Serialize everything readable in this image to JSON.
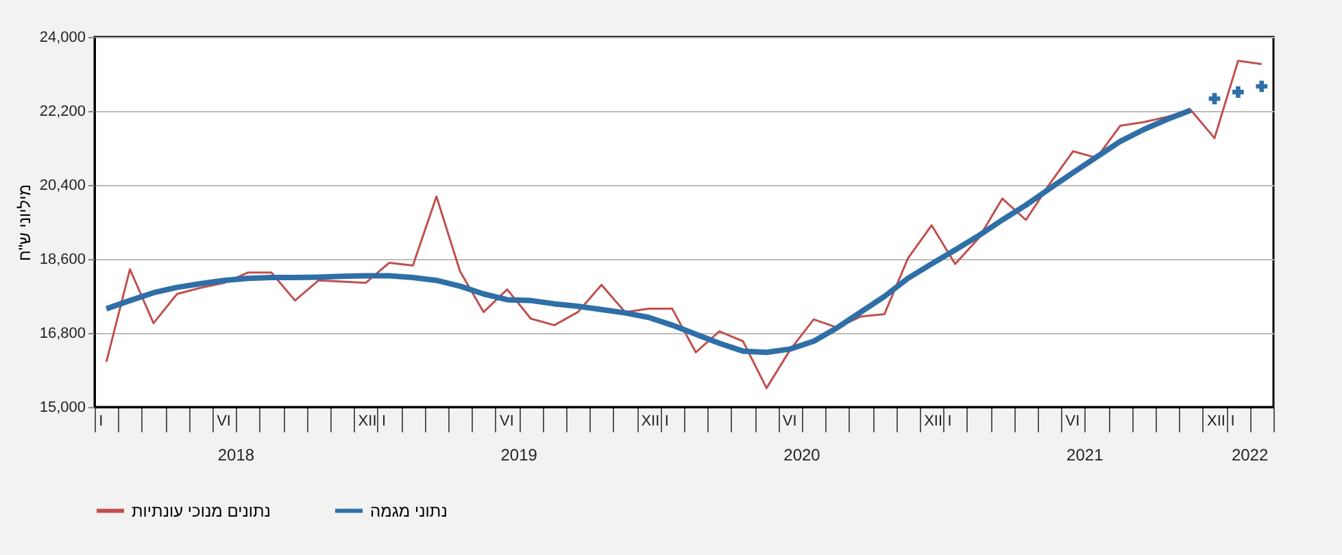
{
  "chart_data": {
    "type": "line",
    "ylabel": "מיליוני ש\"ח",
    "categories": [
      "I",
      null,
      null,
      null,
      null,
      "VI",
      null,
      null,
      null,
      null,
      null,
      "XII",
      "I",
      null,
      null,
      null,
      null,
      "VI",
      null,
      null,
      null,
      null,
      null,
      "XII",
      "I",
      null,
      null,
      null,
      null,
      "VI",
      null,
      null,
      null,
      null,
      null,
      "XII",
      "I",
      null,
      null,
      null,
      null,
      "VI",
      null,
      null,
      null,
      null,
      null,
      "XII",
      "I",
      null
    ],
    "annotations": [
      "2018",
      "2019",
      "2020",
      "2021",
      "2022"
    ],
    "series": [
      {
        "name": "נתונים מנוכי עונתיות",
        "color": "#c0504d",
        "values": [
          16100,
          18350,
          17040,
          17750,
          17900,
          18020,
          18270,
          18270,
          17590,
          18080,
          18050,
          18020,
          18510,
          18440,
          20120,
          18300,
          17310,
          17860,
          17150,
          16990,
          17310,
          17970,
          17310,
          17390,
          17390,
          16330,
          16840,
          16600,
          15460,
          16390,
          17130,
          16930,
          17200,
          17260,
          18620,
          19420,
          18480,
          19110,
          20070,
          19550,
          20420,
          21220,
          21060,
          21840,
          21930,
          22060,
          22220,
          21540,
          23420,
          23340
        ]
      },
      {
        "name": "נתוני מגמה",
        "color": "#2f6fa7",
        "values": [
          17390,
          17590,
          17780,
          17910,
          18000,
          18080,
          18130,
          18150,
          18150,
          18160,
          18180,
          18190,
          18190,
          18150,
          18080,
          17940,
          17750,
          17610,
          17590,
          17510,
          17450,
          17370,
          17290,
          17180,
          16990,
          16770,
          16550,
          16360,
          16330,
          16410,
          16600,
          16930,
          17310,
          17690,
          18130,
          18480,
          18820,
          19170,
          19550,
          19910,
          20310,
          20700,
          21080,
          21460,
          21750,
          22000,
          22220,
          null,
          null,
          null
        ]
      },
      {
        "type": "scatter",
        "color": "#2f6fa7",
        "marker": "cross",
        "values": [
          null,
          null,
          null,
          null,
          null,
          null,
          null,
          null,
          null,
          null,
          null,
          null,
          null,
          null,
          null,
          null,
          null,
          null,
          null,
          null,
          null,
          null,
          null,
          null,
          null,
          null,
          null,
          null,
          null,
          null,
          null,
          null,
          null,
          null,
          null,
          null,
          null,
          null,
          null,
          null,
          null,
          null,
          null,
          null,
          null,
          null,
          null,
          22500,
          22660,
          22800
        ]
      }
    ],
    "ylim": [
      15000,
      24000
    ],
    "yticks": [
      {
        "value": 15000,
        "label": "15,000"
      },
      {
        "value": 16800,
        "label": "16,800"
      },
      {
        "value": 18600,
        "label": "18,600"
      },
      {
        "value": 20400,
        "label": "20,400"
      },
      {
        "value": 22200,
        "label": "22,200"
      },
      {
        "value": 24000,
        "label": "24,000"
      }
    ],
    "grid": "y",
    "legend": "bottom"
  }
}
